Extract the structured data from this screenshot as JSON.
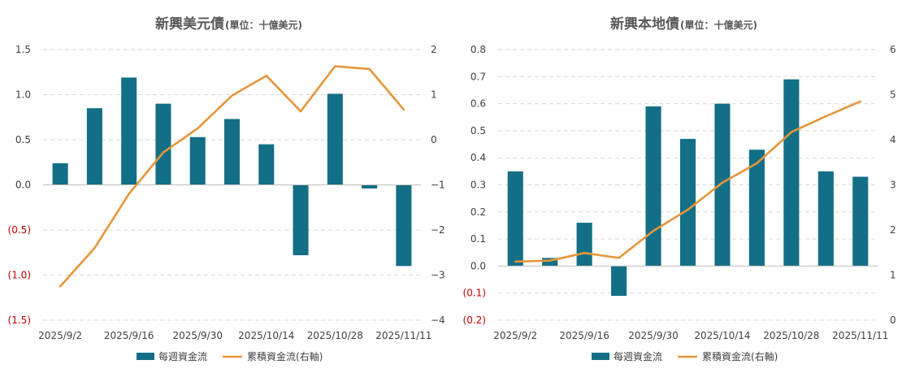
{
  "chart_data": [
    {
      "type": "bar+line",
      "title": "新興美元債",
      "subtitle": "(單位：十億美元)",
      "categories": [
        "2025/9/2",
        "2025/9/9",
        "2025/9/16",
        "2025/9/23",
        "2025/9/30",
        "2025/10/7",
        "2025/10/14",
        "2025/10/21",
        "2025/10/28",
        "2025/11/4",
        "2025/11/11"
      ],
      "x_tick_labels": [
        "2025/9/2",
        "2025/9/16",
        "2025/9/30",
        "2025/10/14",
        "2025/10/28",
        "2025/11/11"
      ],
      "series": [
        {
          "name": "每週資金流",
          "kind": "bar",
          "axis": "left",
          "color": "#136f85",
          "values": [
            0.24,
            0.85,
            1.19,
            0.9,
            0.53,
            0.73,
            0.45,
            -0.78,
            1.01,
            -0.04,
            -0.9
          ]
        },
        {
          "name": "累積資金流(右軸)",
          "kind": "line",
          "axis": "right",
          "color": "#e5963a",
          "values": [
            -3.25,
            -2.4,
            -1.2,
            -0.28,
            0.25,
            0.98,
            1.42,
            0.63,
            1.63,
            1.57,
            0.67
          ]
        }
      ],
      "left_axis": {
        "range": [
          -1.5,
          1.5
        ],
        "ticks": [
          1.5,
          1.0,
          0.5,
          0.0,
          -0.5,
          -1.0,
          -1.5
        ],
        "tick_labels": [
          "1.5",
          "1.0",
          "0.5",
          "0.0",
          "(0.5)",
          "(1.0)",
          "(1.5)"
        ]
      },
      "right_axis": {
        "range": [
          -4,
          2
        ],
        "ticks": [
          2,
          1,
          0,
          -1,
          -2,
          -3,
          -4
        ],
        "tick_labels": [
          "2",
          "1",
          "0",
          "−1",
          "−2",
          "−3",
          "−4"
        ]
      },
      "legend": {
        "position": "bottom",
        "bar_label": "每週資金流",
        "line_label": "累積資金流(右軸)"
      }
    },
    {
      "type": "bar+line",
      "title": "新興本地債",
      "subtitle": "(單位：十億美元)",
      "categories": [
        "2025/9/2",
        "2025/9/9",
        "2025/9/16",
        "2025/9/23",
        "2025/9/30",
        "2025/10/7",
        "2025/10/14",
        "2025/10/21",
        "2025/10/28",
        "2025/11/4",
        "2025/11/11"
      ],
      "x_tick_labels": [
        "2025/9/2",
        "2025/9/16",
        "2025/9/30",
        "2025/10/14",
        "2025/10/28",
        "2025/11/11"
      ],
      "series": [
        {
          "name": "每週資金流",
          "kind": "bar",
          "axis": "left",
          "color": "#136f85",
          "values": [
            0.35,
            0.03,
            0.16,
            -0.11,
            0.59,
            0.47,
            0.6,
            0.43,
            0.69,
            0.35,
            0.33
          ]
        },
        {
          "name": "累積資金流(右軸)",
          "kind": "line",
          "axis": "right",
          "color": "#e5963a",
          "values": [
            1.3,
            1.32,
            1.49,
            1.38,
            1.98,
            2.45,
            3.05,
            3.48,
            4.17,
            4.52,
            4.85
          ]
        }
      ],
      "left_axis": {
        "range": [
          -0.2,
          0.8
        ],
        "ticks": [
          0.8,
          0.7,
          0.6,
          0.5,
          0.4,
          0.3,
          0.2,
          0.1,
          0.0,
          -0.1,
          -0.2
        ],
        "tick_labels": [
          "0.8",
          "0.7",
          "0.6",
          "0.5",
          "0.4",
          "0.3",
          "0.2",
          "0.1",
          "0.0",
          "(0.1)",
          "(0.2)"
        ]
      },
      "right_axis": {
        "range": [
          0,
          6
        ],
        "ticks": [
          6,
          5,
          4,
          3,
          2,
          1,
          0
        ],
        "tick_labels": [
          "6",
          "5",
          "4",
          "3",
          "2",
          "1",
          "0"
        ]
      },
      "legend": {
        "position": "bottom",
        "bar_label": "每週資金流",
        "line_label": "累積資金流(右軸)"
      }
    }
  ]
}
